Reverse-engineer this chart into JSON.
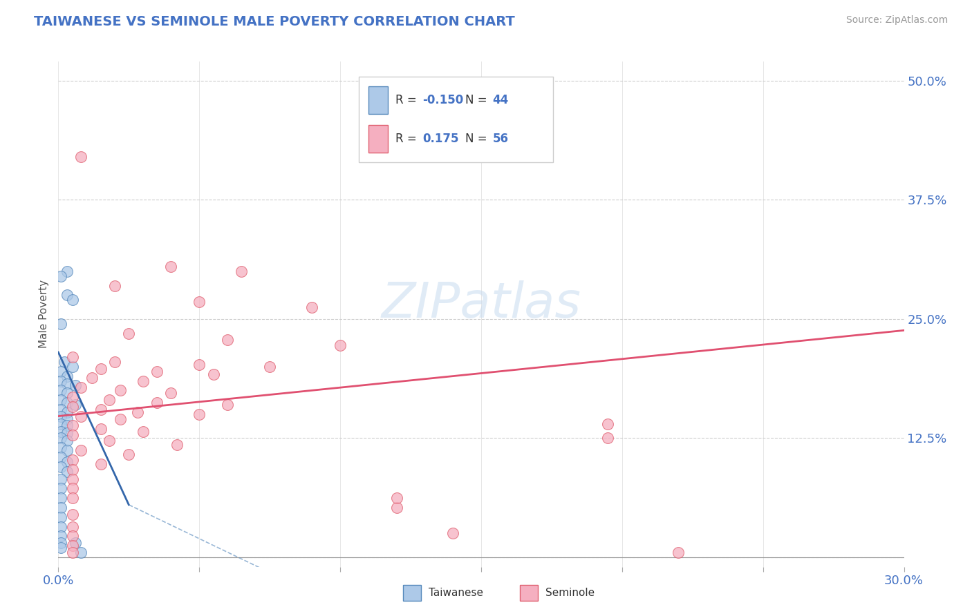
{
  "title": "TAIWANESE VS SEMINOLE MALE POVERTY CORRELATION CHART",
  "source": "Source: ZipAtlas.com",
  "ylabel_label": "Male Poverty",
  "xlim": [
    0.0,
    0.3
  ],
  "ylim": [
    -0.01,
    0.52
  ],
  "taiwanese_R": -0.15,
  "taiwanese_N": 44,
  "seminole_R": 0.175,
  "seminole_N": 56,
  "taiwanese_color": "#adc9e8",
  "seminole_color": "#f5afc0",
  "taiwanese_edge_color": "#5588bb",
  "seminole_edge_color": "#e06070",
  "taiwanese_line_color": "#3366aa",
  "seminole_line_color": "#e05070",
  "watermark": "ZIPatlas",
  "yticks": [
    0.0,
    0.125,
    0.25,
    0.375,
    0.5
  ],
  "ytick_labels": [
    "",
    "12.5%",
    "25.0%",
    "37.5%",
    "50.0%"
  ],
  "xticks": [
    0.0,
    0.05,
    0.1,
    0.15,
    0.2,
    0.25,
    0.3
  ],
  "xtick_labels": [
    "0.0%",
    "",
    "",
    "",
    "",
    "",
    "30.0%"
  ],
  "tick_color": "#4472c4",
  "taiwanese_points": [
    [
      0.003,
      0.3
    ],
    [
      0.003,
      0.275
    ],
    [
      0.005,
      0.27
    ],
    [
      0.001,
      0.295
    ],
    [
      0.001,
      0.245
    ],
    [
      0.002,
      0.205
    ],
    [
      0.005,
      0.2
    ],
    [
      0.001,
      0.195
    ],
    [
      0.003,
      0.19
    ],
    [
      0.001,
      0.185
    ],
    [
      0.003,
      0.182
    ],
    [
      0.006,
      0.18
    ],
    [
      0.001,
      0.175
    ],
    [
      0.003,
      0.172
    ],
    [
      0.001,
      0.165
    ],
    [
      0.003,
      0.162
    ],
    [
      0.006,
      0.16
    ],
    [
      0.001,
      0.155
    ],
    [
      0.003,
      0.152
    ],
    [
      0.001,
      0.148
    ],
    [
      0.003,
      0.145
    ],
    [
      0.001,
      0.14
    ],
    [
      0.003,
      0.138
    ],
    [
      0.001,
      0.132
    ],
    [
      0.003,
      0.13
    ],
    [
      0.001,
      0.125
    ],
    [
      0.003,
      0.122
    ],
    [
      0.001,
      0.115
    ],
    [
      0.003,
      0.112
    ],
    [
      0.001,
      0.105
    ],
    [
      0.003,
      0.1
    ],
    [
      0.001,
      0.095
    ],
    [
      0.003,
      0.09
    ],
    [
      0.001,
      0.082
    ],
    [
      0.001,
      0.072
    ],
    [
      0.001,
      0.062
    ],
    [
      0.001,
      0.052
    ],
    [
      0.001,
      0.042
    ],
    [
      0.001,
      0.032
    ],
    [
      0.001,
      0.022
    ],
    [
      0.001,
      0.015
    ],
    [
      0.001,
      0.01
    ],
    [
      0.006,
      0.015
    ],
    [
      0.008,
      0.005
    ]
  ],
  "seminole_points": [
    [
      0.008,
      0.42
    ],
    [
      0.04,
      0.305
    ],
    [
      0.065,
      0.3
    ],
    [
      0.02,
      0.285
    ],
    [
      0.05,
      0.268
    ],
    [
      0.09,
      0.262
    ],
    [
      0.025,
      0.235
    ],
    [
      0.06,
      0.228
    ],
    [
      0.1,
      0.222
    ],
    [
      0.005,
      0.21
    ],
    [
      0.02,
      0.205
    ],
    [
      0.05,
      0.202
    ],
    [
      0.075,
      0.2
    ],
    [
      0.015,
      0.198
    ],
    [
      0.035,
      0.195
    ],
    [
      0.055,
      0.192
    ],
    [
      0.012,
      0.188
    ],
    [
      0.03,
      0.185
    ],
    [
      0.008,
      0.178
    ],
    [
      0.022,
      0.175
    ],
    [
      0.04,
      0.172
    ],
    [
      0.005,
      0.168
    ],
    [
      0.018,
      0.165
    ],
    [
      0.035,
      0.162
    ],
    [
      0.06,
      0.16
    ],
    [
      0.005,
      0.158
    ],
    [
      0.015,
      0.155
    ],
    [
      0.028,
      0.152
    ],
    [
      0.05,
      0.15
    ],
    [
      0.008,
      0.148
    ],
    [
      0.022,
      0.145
    ],
    [
      0.005,
      0.138
    ],
    [
      0.015,
      0.135
    ],
    [
      0.03,
      0.132
    ],
    [
      0.005,
      0.128
    ],
    [
      0.018,
      0.122
    ],
    [
      0.042,
      0.118
    ],
    [
      0.008,
      0.112
    ],
    [
      0.025,
      0.108
    ],
    [
      0.005,
      0.102
    ],
    [
      0.015,
      0.098
    ],
    [
      0.005,
      0.092
    ],
    [
      0.005,
      0.082
    ],
    [
      0.005,
      0.072
    ],
    [
      0.12,
      0.052
    ],
    [
      0.005,
      0.062
    ],
    [
      0.12,
      0.062
    ],
    [
      0.005,
      0.045
    ],
    [
      0.005,
      0.032
    ],
    [
      0.14,
      0.025
    ],
    [
      0.005,
      0.022
    ],
    [
      0.005,
      0.012
    ],
    [
      0.005,
      0.005
    ],
    [
      0.195,
      0.14
    ],
    [
      0.195,
      0.125
    ],
    [
      0.22,
      0.005
    ]
  ],
  "tw_trendline": [
    [
      0.0,
      0.215
    ],
    [
      0.025,
      0.055
    ]
  ],
  "sm_trendline": [
    [
      0.0,
      0.148
    ],
    [
      0.3,
      0.238
    ]
  ]
}
